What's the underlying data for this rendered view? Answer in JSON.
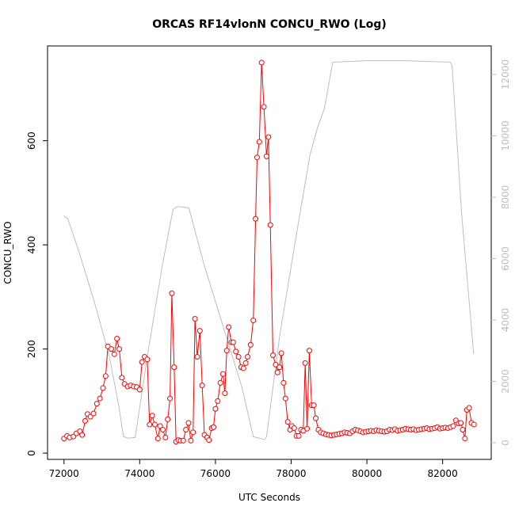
{
  "chart_data": {
    "type": "line",
    "title": "ORCAS RF14vlonN CONCU_RWO (Log)",
    "x_label": "UTC Seconds",
    "y_label": "CONCU_RWO",
    "xlim": [
      71566,
      83284
    ],
    "ylim": [
      -12,
      782
    ],
    "y2lim": [
      -542,
      12929
    ],
    "xticks": [
      72000,
      74000,
      76000,
      78000,
      80000,
      82000
    ],
    "yticks": [
      0,
      200,
      400,
      600
    ],
    "y2ticks": [
      0,
      2000,
      4000,
      6000,
      8000,
      10000,
      12000
    ],
    "series": [
      {
        "color": "#bebebe",
        "axis": "y2",
        "markers": false,
        "x": [
          72000,
          72100,
          72400,
          72800,
          73200,
          73450,
          73570,
          73700,
          73880,
          74200,
          74600,
          74880,
          75000,
          75300,
          75700,
          76200,
          76700,
          77000,
          77300,
          77350,
          77700,
          78100,
          78500,
          78680,
          78880,
          79100,
          80000,
          81000,
          82200,
          82250,
          82500,
          82820
        ],
        "values": [
          7400,
          7300,
          6200,
          4600,
          2800,
          1200,
          200,
          150,
          170,
          2800,
          5800,
          7600,
          7700,
          7650,
          5800,
          3800,
          1800,
          200,
          100,
          200,
          3500,
          6500,
          9400,
          10200,
          10900,
          12400,
          12450,
          12450,
          12400,
          12300,
          7500,
          2900
        ]
      },
      {
        "color": "#ff0000",
        "axis": "y",
        "markers": true,
        "x": [
          72000,
          72080,
          72150,
          72250,
          72330,
          72420,
          72480,
          72560,
          72620,
          72700,
          72780,
          72870,
          72950,
          73030,
          73100,
          73160,
          73250,
          73330,
          73400,
          73460,
          73530,
          73600,
          73680,
          73760,
          73840,
          73920,
          74000,
          74060,
          74130,
          74200,
          74260,
          74330,
          74400,
          74480,
          74540,
          74610,
          74680,
          74740,
          74800,
          74850,
          74910,
          74960,
          75020,
          75080,
          75150,
          75220,
          75290,
          75350,
          75410,
          75460,
          75520,
          75590,
          75650,
          75710,
          75780,
          75830,
          75900,
          75950,
          76000,
          76060,
          76130,
          76200,
          76250,
          76300,
          76350,
          76420,
          76470,
          76540,
          76610,
          76680,
          76740,
          76800,
          76850,
          76930,
          77000,
          77060,
          77100,
          77160,
          77220,
          77280,
          77350,
          77400,
          77450,
          77520,
          77590,
          77640,
          77690,
          77740,
          77800,
          77850,
          77910,
          77970,
          78020,
          78080,
          78140,
          78200,
          78260,
          78320,
          78370,
          78420,
          78480,
          78540,
          78600,
          78650,
          78720,
          78780,
          78850,
          78920,
          78990,
          79060,
          79130,
          79200,
          79270,
          79340,
          79410,
          79480,
          79550,
          79620,
          79690,
          79760,
          79830,
          79900,
          79970,
          80040,
          80110,
          80180,
          80250,
          80320,
          80390,
          80460,
          80530,
          80600,
          80670,
          80740,
          80810,
          80880,
          80950,
          81020,
          81090,
          81160,
          81230,
          81300,
          81370,
          81440,
          81510,
          81580,
          81650,
          81720,
          81790,
          81860,
          81930,
          82000,
          82070,
          82140,
          82210,
          82280,
          82350,
          82420,
          82480,
          82530,
          82590,
          82640,
          82700,
          82760,
          82830
        ],
        "values": [
          28,
          33,
          30,
          32,
          38,
          42,
          35,
          62,
          75,
          70,
          76,
          95,
          105,
          125,
          148,
          205,
          200,
          190,
          220,
          200,
          145,
          133,
          128,
          130,
          128,
          127,
          122,
          175,
          185,
          180,
          55,
          72,
          55,
          28,
          52,
          45,
          30,
          65,
          105,
          307,
          165,
          22,
          25,
          24,
          24,
          45,
          58,
          24,
          40,
          258,
          185,
          235,
          130,
          35,
          30,
          25,
          48,
          50,
          85,
          100,
          135,
          152,
          115,
          197,
          242,
          213,
          213,
          195,
          185,
          165,
          163,
          173,
          185,
          208,
          255,
          450,
          568,
          598,
          750,
          665,
          570,
          607,
          438,
          188,
          170,
          155,
          165,
          192,
          135,
          105,
          60,
          45,
          52,
          48,
          33,
          33,
          45,
          43,
          173,
          47,
          197,
          92,
          92,
          67,
          45,
          40,
          38,
          36,
          35,
          34,
          35,
          36,
          37,
          38,
          40,
          39,
          38,
          42,
          45,
          44,
          42,
          40,
          41,
          42,
          43,
          42,
          44,
          43,
          42,
          41,
          42,
          45,
          44,
          46,
          43,
          44,
          45,
          47,
          46,
          45,
          46,
          44,
          45,
          46,
          47,
          48,
          46,
          47,
          48,
          50,
          47,
          48,
          49,
          48,
          50,
          52,
          63,
          57,
          58,
          45,
          28,
          83,
          87,
          58,
          55
        ]
      }
    ]
  }
}
